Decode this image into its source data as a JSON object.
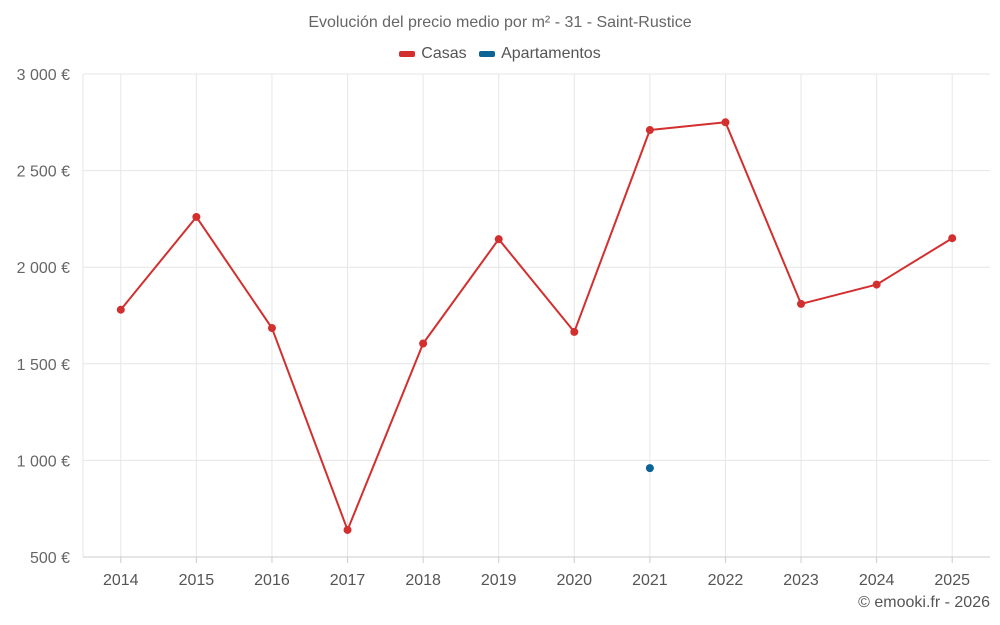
{
  "chart_data": {
    "type": "line",
    "title": "Evolución del precio medio por m² - 31 - Saint-Rustice",
    "categories": [
      "2014",
      "2015",
      "2016",
      "2017",
      "2018",
      "2019",
      "2020",
      "2021",
      "2022",
      "2023",
      "2024",
      "2025"
    ],
    "series": [
      {
        "name": "Casas",
        "color": "#d32f2f",
        "values": [
          1780,
          2260,
          1685,
          640,
          1605,
          2145,
          1665,
          2710,
          2750,
          1810,
          1910,
          2150
        ]
      },
      {
        "name": "Apartamentos",
        "color": "#0b6396",
        "values": [
          null,
          null,
          null,
          null,
          null,
          null,
          null,
          960,
          null,
          null,
          null,
          null
        ]
      }
    ],
    "ylim": [
      500,
      3000
    ],
    "yticks": [
      500,
      1000,
      1500,
      2000,
      2500,
      3000
    ],
    "ytick_labels": [
      "500 €",
      "1 000 €",
      "1 500 €",
      "2 000 €",
      "2 500 €",
      "3 000 €"
    ],
    "grid": true,
    "legend_position": "top-center",
    "xlabel": "",
    "ylabel": ""
  },
  "credit": "© emooki.fr - 2026"
}
